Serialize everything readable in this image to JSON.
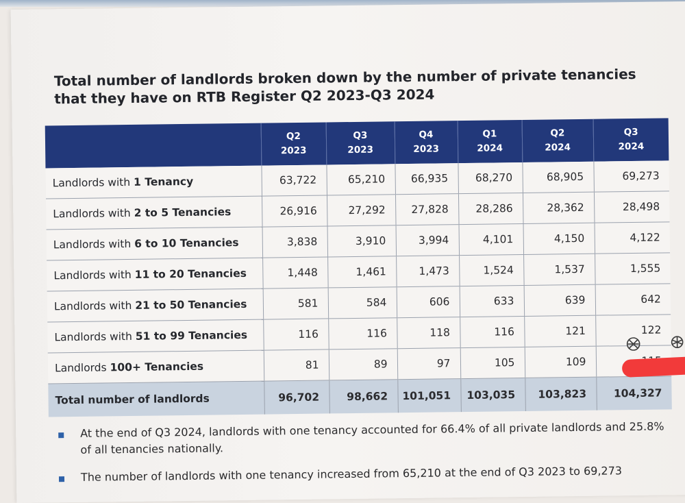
{
  "title": "Total number of landlords broken down by the number of private tenancies that they have on RTB Register Q2 2023-Q3 2024",
  "columns": [
    {
      "q": "Q2",
      "y": "2023"
    },
    {
      "q": "Q3",
      "y": "2023"
    },
    {
      "q": "Q4",
      "y": "2023"
    },
    {
      "q": "Q1",
      "y": "2024"
    },
    {
      "q": "Q2",
      "y": "2024"
    },
    {
      "q": "Q3",
      "y": "2024"
    }
  ],
  "rows": [
    {
      "prefix": "Landlords with",
      "bold": "1 Tenancy",
      "values": [
        "63,722",
        "65,210",
        "66,935",
        "68,270",
        "68,905",
        "69,273"
      ]
    },
    {
      "prefix": "Landlords with",
      "bold": "2 to 5 Tenancies",
      "values": [
        "26,916",
        "27,292",
        "27,828",
        "28,286",
        "28,362",
        "28,498"
      ]
    },
    {
      "prefix": "Landlords with",
      "bold": "6 to 10 Tenancies",
      "values": [
        "3,838",
        "3,910",
        "3,994",
        "4,101",
        "4,150",
        "4,122"
      ]
    },
    {
      "prefix": "Landlords with",
      "bold": "11 to 20 Tenancies",
      "values": [
        "1,448",
        "1,461",
        "1,473",
        "1,524",
        "1,537",
        "1,555"
      ]
    },
    {
      "prefix": "Landlords with",
      "bold": "21 to 50 Tenancies",
      "values": [
        "581",
        "584",
        "606",
        "633",
        "639",
        "642"
      ]
    },
    {
      "prefix": "Landlords with",
      "bold": "51 to 99 Tenancies",
      "values": [
        "116",
        "116",
        "118",
        "116",
        "121",
        "122"
      ]
    },
    {
      "prefix": "Landlords",
      "bold": "100+ Tenancies",
      "values": [
        "81",
        "89",
        "97",
        "105",
        "109",
        "115"
      ]
    }
  ],
  "total": {
    "label": "Total number of landlords",
    "values": [
      "96,702",
      "98,662",
      "101,051",
      "103,035",
      "103,823",
      "104,327"
    ]
  },
  "bullets": [
    "At the end of Q3 2024, landlords with one tenancy accounted for 66.4% of all private landlords and 25.8% of all tenancies nationally.",
    "The number of landlords with one tenancy increased from 65,210 at the end of Q3 2023 to 69,273"
  ],
  "colors": {
    "header": "#22387a",
    "total_row": "#c9d3df",
    "bullet": "#2e61a8",
    "redaction": "#f23a3a"
  }
}
